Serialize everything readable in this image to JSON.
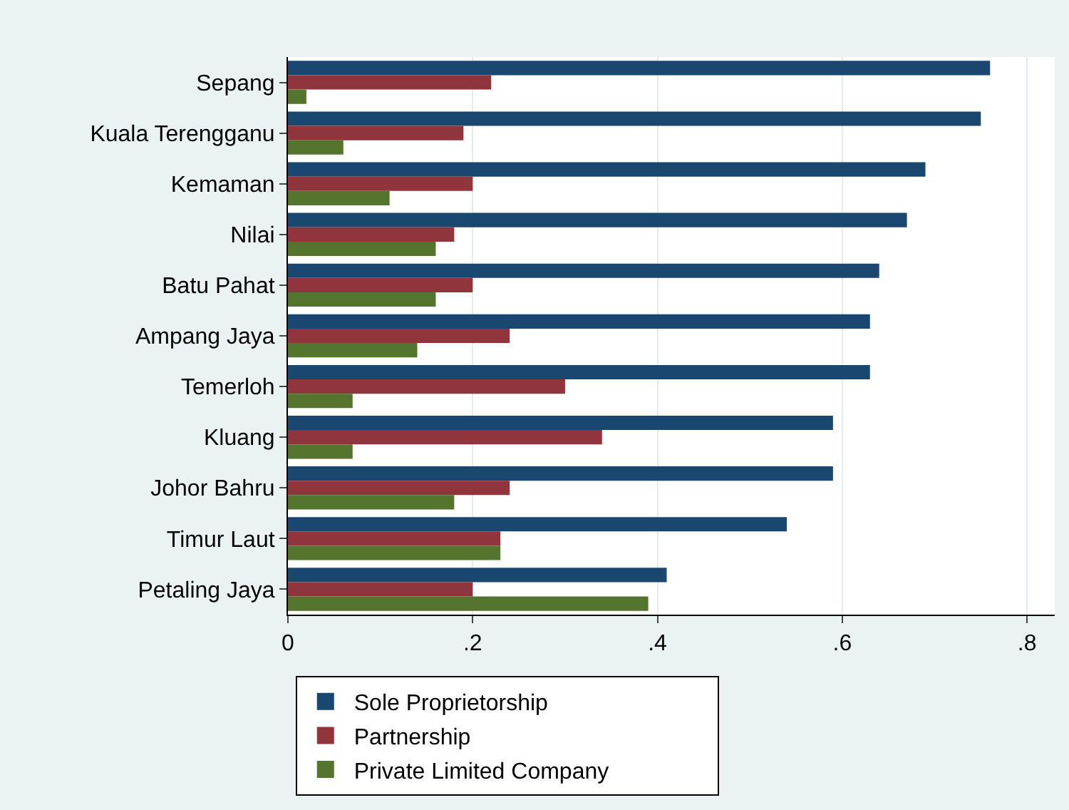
{
  "chart_data": {
    "type": "bar",
    "orientation": "horizontal",
    "categories": [
      "Sepang",
      "Kuala Terengganu",
      "Kemaman",
      "Nilai",
      "Batu Pahat",
      "Ampang Jaya",
      "Temerloh",
      "Kluang",
      "Johor Bahru",
      "Timur Laut",
      "Petaling Jaya"
    ],
    "series": [
      {
        "name": "Sole Proprietorship",
        "color": "#1a476f",
        "values": [
          0.76,
          0.75,
          0.69,
          0.67,
          0.64,
          0.63,
          0.63,
          0.59,
          0.59,
          0.54,
          0.41
        ]
      },
      {
        "name": "Partnership",
        "color": "#90353b",
        "values": [
          0.22,
          0.19,
          0.2,
          0.18,
          0.2,
          0.24,
          0.3,
          0.34,
          0.24,
          0.23,
          0.2
        ]
      },
      {
        "name": "Private Limited Company",
        "color": "#55752f",
        "values": [
          0.02,
          0.06,
          0.11,
          0.16,
          0.16,
          0.14,
          0.07,
          0.07,
          0.18,
          0.23,
          0.39
        ]
      }
    ],
    "xlim": [
      0,
      0.83
    ],
    "xticks": [
      0,
      {
        "value": 0.2,
        "label": ".2"
      },
      {
        "value": 0.4,
        "label": ".4"
      },
      {
        "value": 0.6,
        "label": ".6"
      },
      {
        "value": 0.8,
        "label": ".8"
      }
    ],
    "grid": "x",
    "legend": "bottom"
  }
}
